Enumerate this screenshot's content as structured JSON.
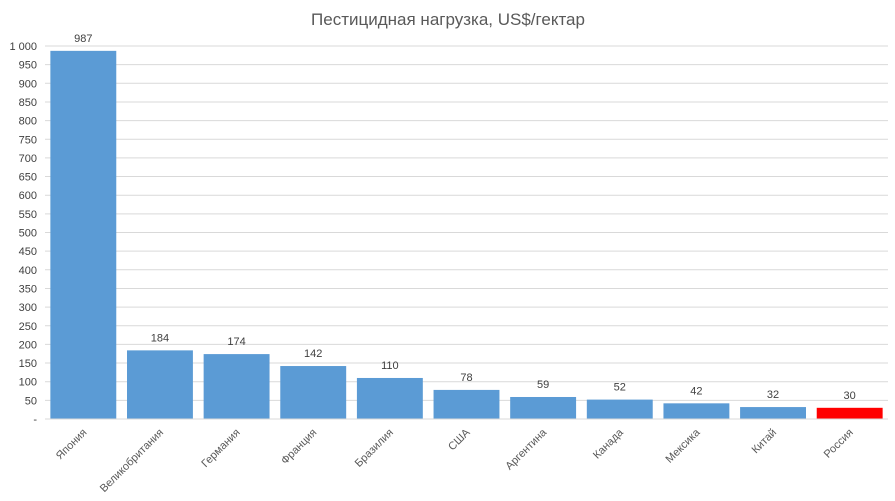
{
  "chart_data": {
    "type": "bar",
    "title": "Пестицидная нагрузка, US$/гектар",
    "categories": [
      "Япония",
      "Великобритания",
      "Германия",
      "Франция",
      "Бразилия",
      "США",
      "Аргентина",
      "Канада",
      "Мексика",
      "Китай",
      "Россия"
    ],
    "values": [
      987,
      184,
      174,
      142,
      110,
      78,
      59,
      52,
      42,
      32,
      30
    ],
    "value_labels": [
      "987",
      "184",
      "174",
      "142",
      "110",
      "78",
      "59",
      "52",
      "42",
      "32",
      "30"
    ],
    "ylim": [
      0,
      1000
    ],
    "yticks": [
      0,
      50,
      100,
      150,
      200,
      250,
      300,
      350,
      400,
      450,
      500,
      550,
      600,
      650,
      700,
      750,
      800,
      850,
      900,
      950,
      1000
    ],
    "ytick_labels": [
      "-",
      "50",
      "100",
      "150",
      "200",
      "250",
      "300",
      "350",
      "400",
      "450",
      "500",
      "550",
      "600",
      "650",
      "700",
      "750",
      "800",
      "850",
      "900",
      "950",
      "1 000"
    ],
    "grid": true,
    "bar_color": "#5b9bd5",
    "highlight_color": "#ff0000",
    "highlight_category": "Россия"
  }
}
